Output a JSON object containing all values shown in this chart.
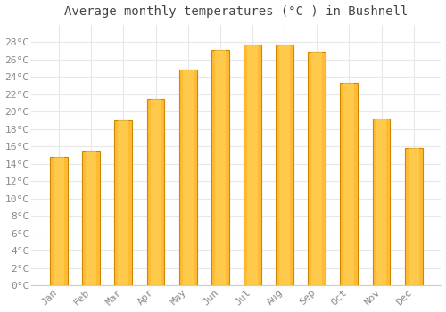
{
  "title": "Average monthly temperatures (°C ) in Bushnell",
  "months": [
    "Jan",
    "Feb",
    "Mar",
    "Apr",
    "May",
    "Jun",
    "Jul",
    "Aug",
    "Sep",
    "Oct",
    "Nov",
    "Dec"
  ],
  "values": [
    14.8,
    15.5,
    19.0,
    21.5,
    24.8,
    27.1,
    27.7,
    27.7,
    26.9,
    23.3,
    19.2,
    15.8
  ],
  "bar_color": "#FFBB33",
  "bar_edge_color": "#CC8800",
  "background_color": "#FFFFFF",
  "plot_bg_color": "#FFFFFF",
  "ylim": [
    0,
    30
  ],
  "yticks": [
    0,
    2,
    4,
    6,
    8,
    10,
    12,
    14,
    16,
    18,
    20,
    22,
    24,
    26,
    28
  ],
  "title_fontsize": 10,
  "tick_fontsize": 8,
  "grid_color": "#E8E8E8",
  "title_color": "#444444",
  "tick_color": "#888888",
  "bar_width": 0.55
}
